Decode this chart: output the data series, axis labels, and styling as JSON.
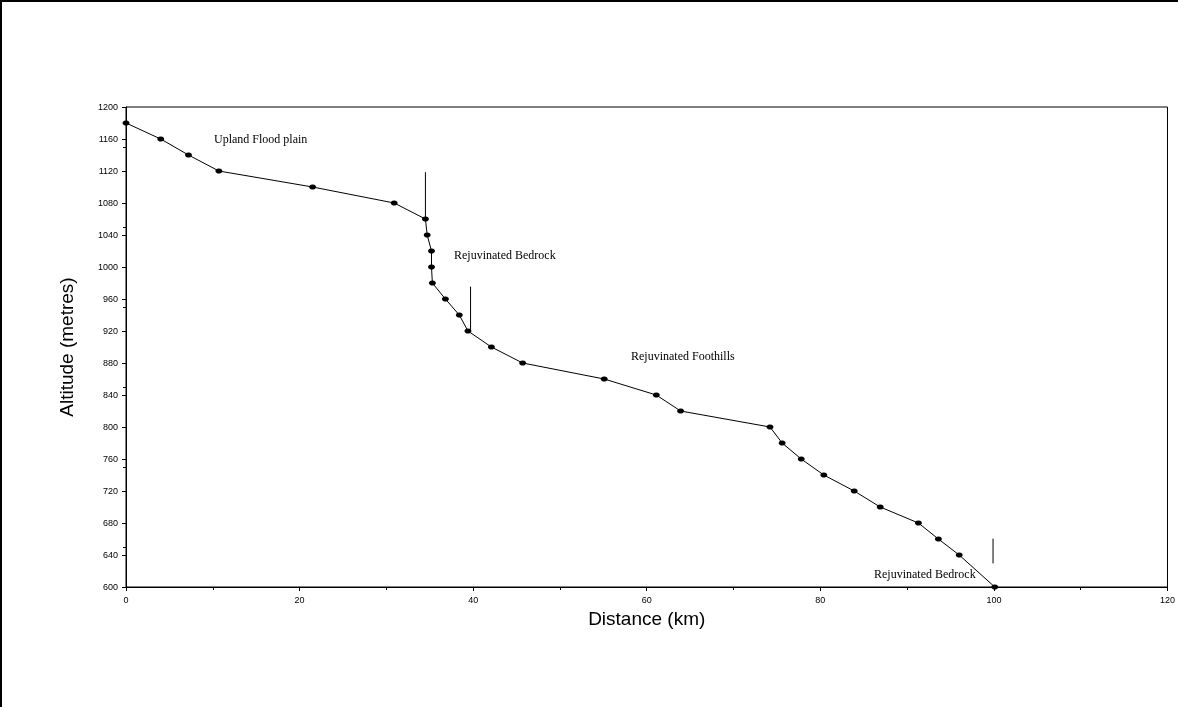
{
  "chart_data": {
    "type": "line",
    "xlabel": "Distance (km)",
    "ylabel": "Altitude (metres)",
    "xlim": [
      0,
      120
    ],
    "xticks": [
      0,
      20,
      40,
      60,
      80,
      100,
      120
    ],
    "ylim": [
      600,
      1200
    ],
    "yticks": [
      600,
      640,
      680,
      720,
      760,
      800,
      840,
      880,
      920,
      960,
      1000,
      1040,
      1080,
      1120,
      1160,
      1200
    ],
    "grid": false,
    "marker": "circle",
    "line_style": "solid",
    "series": [
      {
        "color": "#000000",
        "x": [
          0,
          4,
          7.2,
          10.7,
          21.5,
          30.9,
          34.5,
          34.7,
          35.2,
          35.2,
          35.3,
          36.8,
          38.4,
          39.4,
          42.1,
          45.7,
          55.1,
          61.1,
          63.9,
          74.2,
          75.6,
          77.8,
          80.4,
          83.9,
          86.9,
          91.3,
          93.6,
          96.0,
          100.1
        ],
        "values": [
          1180,
          1160,
          1140,
          1120,
          1100,
          1080,
          1060,
          1040,
          1020,
          1000,
          980,
          960,
          940,
          920,
          900,
          880,
          860,
          840,
          820,
          800,
          780,
          760,
          740,
          720,
          700,
          680,
          660,
          640,
          600
        ]
      },
      {
        "color": "#000000",
        "marker": "none",
        "x": [
          34.5,
          34.5
        ],
        "values": [
          1060,
          1118
        ]
      },
      {
        "color": "#000000",
        "marker": "none",
        "x": [
          39.7,
          39.7
        ],
        "values": [
          922,
          975
        ]
      },
      {
        "color": "#000000",
        "marker": "none",
        "x": [
          99.9,
          99.9
        ],
        "values": [
          630,
          660
        ]
      }
    ],
    "annotations": [
      "Upland Flood plain",
      "Rejuvinated Bedrock",
      "Rejuvinated Foothills",
      "Rejuvinated Bedrock"
    ]
  }
}
